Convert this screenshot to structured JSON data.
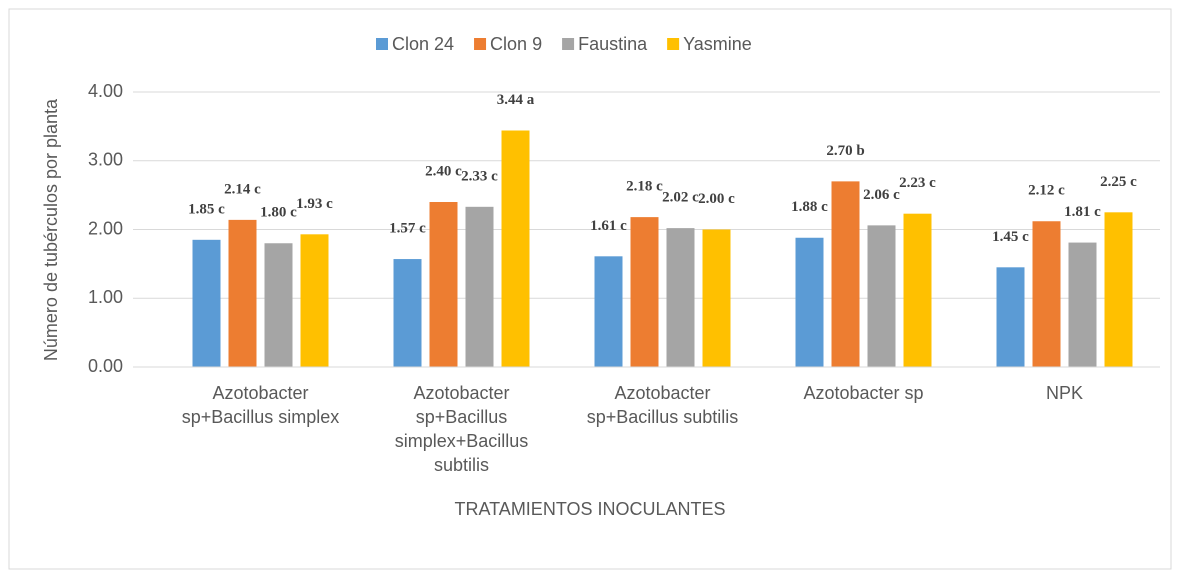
{
  "chart_data": {
    "type": "bar",
    "categories": [
      "Azotobacter sp+Bacillus simplex",
      "Azotobacter sp+Bacillus simplex+Bacillus subtilis",
      "Azotobacter sp+Bacillus subtilis",
      "Azotobacter sp",
      "NPK"
    ],
    "series": [
      {
        "name": "Clon 24",
        "color": "#5b9bd5",
        "values": [
          1.85,
          1.57,
          1.61,
          1.88,
          1.45
        ],
        "value_labels": [
          "1.85 c",
          "1.57 c",
          "1.61 c",
          "1.88 c",
          "1.45 c"
        ]
      },
      {
        "name": "Clon 9",
        "color": "#ed7d31",
        "values": [
          2.14,
          2.4,
          2.18,
          2.7,
          2.12
        ],
        "value_labels": [
          "2.14 c",
          "2.40 c",
          "2.18 c",
          "2.70 b",
          "2.12 c"
        ]
      },
      {
        "name": "Faustina",
        "color": "#a5a5a5",
        "values": [
          1.8,
          2.33,
          2.02,
          2.06,
          1.81
        ],
        "value_labels": [
          "1.80 c",
          "2.33 c",
          "2.02 c",
          "2.06 c",
          "1.81 c"
        ]
      },
      {
        "name": "Yasmine",
        "color": "#ffc000",
        "values": [
          1.93,
          3.44,
          2.0,
          2.23,
          2.25
        ],
        "value_labels": [
          "1.93 c",
          "3.44 a",
          "2.00 c",
          "2.23 c",
          "2.25 c"
        ]
      }
    ],
    "x_label": "TRATAMIENTOS INOCULANTES",
    "y_label": "Número de tubérculos por planta",
    "ylim": [
      0,
      4
    ],
    "yticks": [
      {
        "value": 0,
        "label": "0.00"
      },
      {
        "value": 1,
        "label": "1.00"
      },
      {
        "value": 2,
        "label": "2.00"
      },
      {
        "value": 3,
        "label": "3.00"
      },
      {
        "value": 4,
        "label": "4.00"
      }
    ],
    "grid": true,
    "legend": "top"
  }
}
